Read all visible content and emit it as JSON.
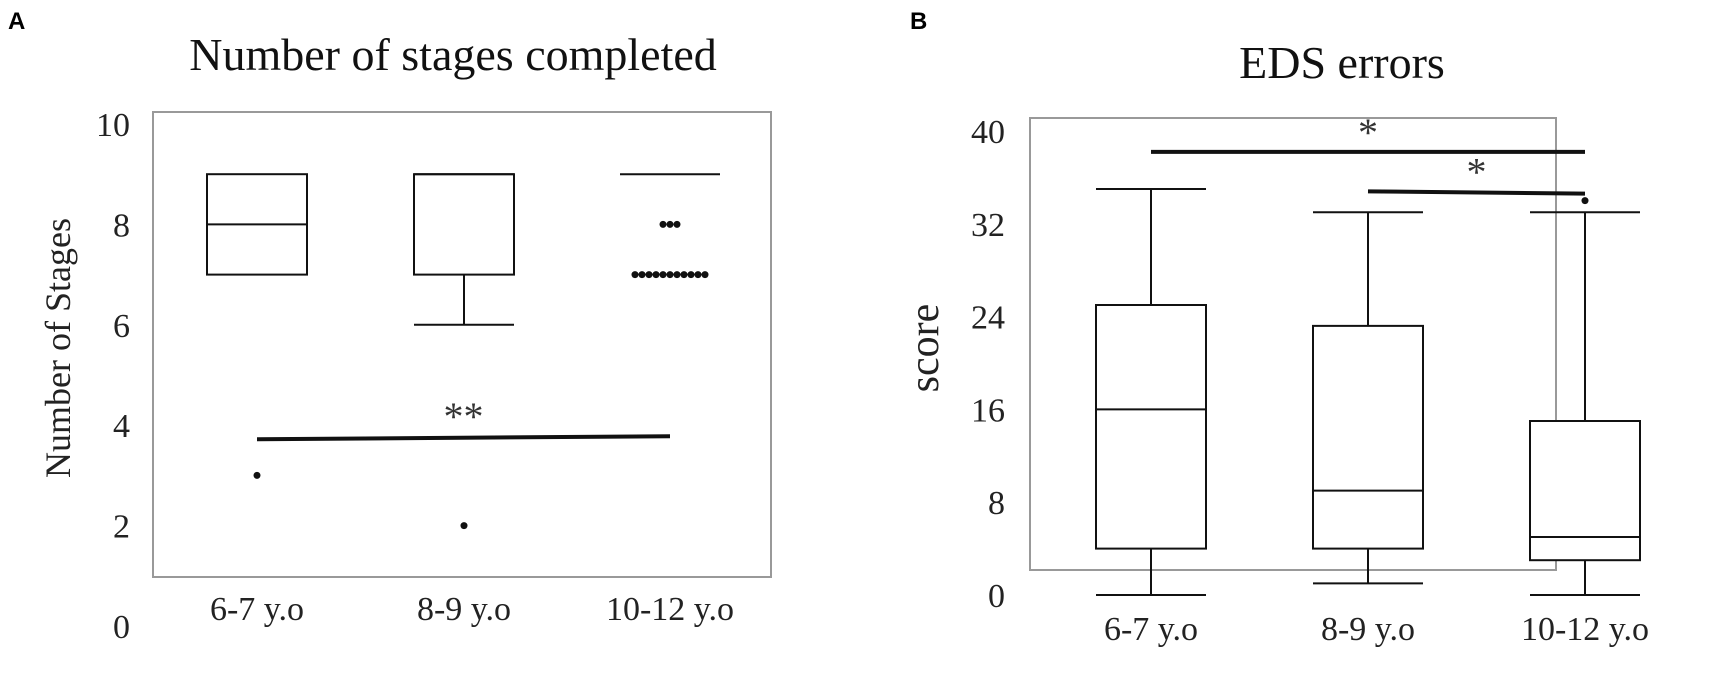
{
  "chart_data": [
    {
      "panel_label": "A",
      "type": "boxplot",
      "title": "Number of stages completed",
      "ylabel": "Number of Stages",
      "ylim": [
        0,
        10
      ],
      "yticks": [
        0,
        2,
        4,
        6,
        8,
        10
      ],
      "categories": [
        "6-7 y.o",
        "8-9 y.o",
        "10-12 y.o"
      ],
      "boxes": [
        {
          "whisker_low": 7,
          "q1": 7,
          "median": 8,
          "q3": 9,
          "whisker_high": 9,
          "outliers": [
            3
          ]
        },
        {
          "whisker_low": 6,
          "q1": 7,
          "median": 9,
          "q3": 9,
          "whisker_high": 9,
          "outliers": [
            2
          ]
        },
        {
          "whisker_low": 9,
          "q1": 9,
          "median": 9,
          "q3": 9,
          "whisker_high": 9,
          "outliers": [
            8,
            8,
            8,
            7,
            7,
            7,
            7,
            7,
            7,
            7,
            7,
            7,
            7,
            7
          ]
        }
      ],
      "significance": [
        {
          "from": 0,
          "to": 2,
          "label": "**",
          "y_start": 3.72,
          "y_end": 3.78
        }
      ],
      "grid": false
    },
    {
      "panel_label": "B",
      "type": "boxplot",
      "title": "EDS errors",
      "ylabel": "score",
      "ylim": [
        0,
        40
      ],
      "yticks": [
        0,
        8,
        16,
        24,
        32,
        40
      ],
      "categories": [
        "6-7 y.o",
        "8-9 y.o",
        "10-12 y.o"
      ],
      "boxes": [
        {
          "whisker_low": 0,
          "q1": 4,
          "median": 16,
          "q3": 25,
          "whisker_high": 35,
          "outliers": []
        },
        {
          "whisker_low": 1,
          "q1": 4,
          "median": 9,
          "q3": 23.2,
          "whisker_high": 33,
          "outliers": []
        },
        {
          "whisker_low": 0,
          "q1": 3,
          "median": 5,
          "q3": 15,
          "whisker_high": 33,
          "outliers": [
            34
          ]
        }
      ],
      "significance": [
        {
          "from": 0,
          "to": 2,
          "label": "*",
          "y_start": 38.2,
          "y_end": 38.2
        },
        {
          "from": 1,
          "to": 2,
          "label": "*",
          "y_start": 34.8,
          "y_end": 34.6
        }
      ],
      "grid": false
    }
  ]
}
